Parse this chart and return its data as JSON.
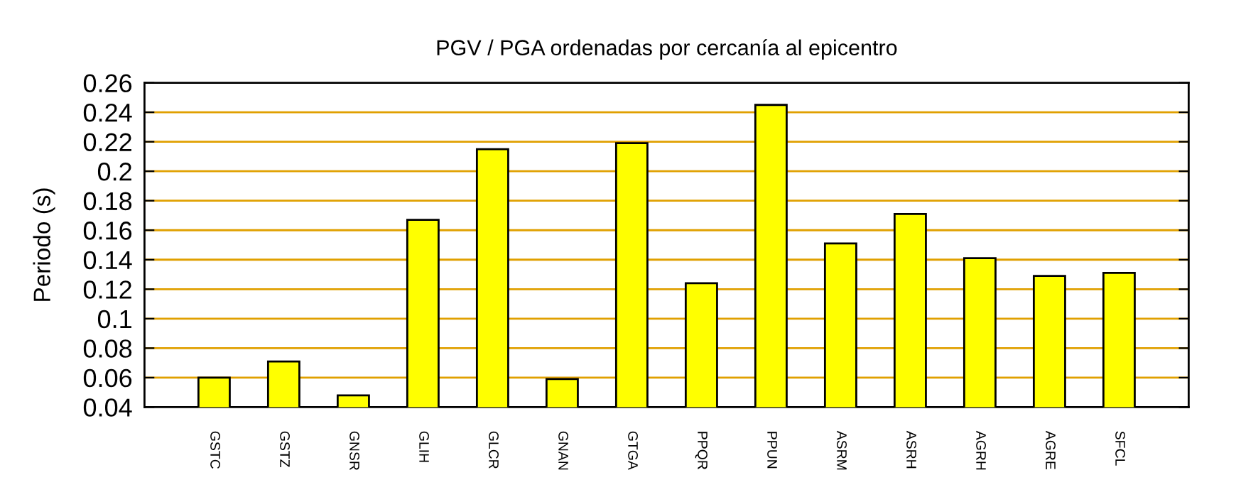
{
  "chart_data": {
    "type": "bar",
    "title": "PGV / PGA ordenadas por cercanía al epicentro",
    "ylabel": "Periodo (s)",
    "categories": [
      "GSTC",
      "GSTZ",
      "GNSR",
      "GLIH",
      "GLCR",
      "GNAN",
      "GTGA",
      "PPQR",
      "PPUN",
      "ASRM",
      "ASRH",
      "AGRH",
      "AGRE",
      "SFCL"
    ],
    "values": [
      0.06,
      0.071,
      0.048,
      0.167,
      0.215,
      0.059,
      0.219,
      0.124,
      0.245,
      0.151,
      0.171,
      0.141,
      0.129,
      0.131
    ],
    "color": "#ffff00",
    "ylim": [
      0.04,
      0.26
    ],
    "yticks": [
      0.04,
      0.06,
      0.08,
      0.1,
      0.12,
      0.14,
      0.16,
      0.18,
      0.2,
      0.22,
      0.24,
      0.26
    ],
    "grid": "y"
  }
}
